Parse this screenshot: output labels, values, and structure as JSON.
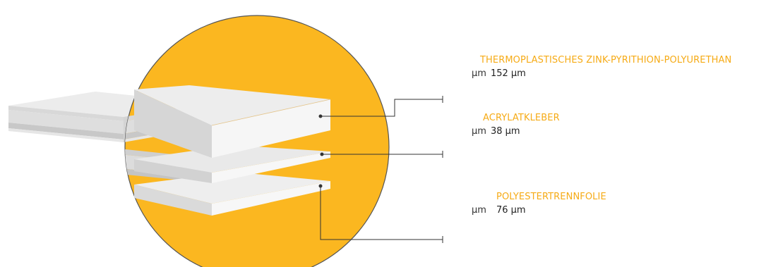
{
  "colors": {
    "accent_circle": "#fbb720",
    "label_color": "#f6ab16",
    "leader_line": "#333333"
  },
  "layers": [
    {
      "name": "THERMOPLASTISCHES ZINK-PYRITHION-POLYURETHAN",
      "unit_glyph": "µm",
      "thickness": "152 µm"
    },
    {
      "name": "ACRYLATKLEBER",
      "unit_glyph": "µm",
      "thickness": "38 µm"
    },
    {
      "name": "POLYESTERTRENNFOLIE",
      "unit_glyph": "µm",
      "thickness": "76 µm"
    }
  ]
}
